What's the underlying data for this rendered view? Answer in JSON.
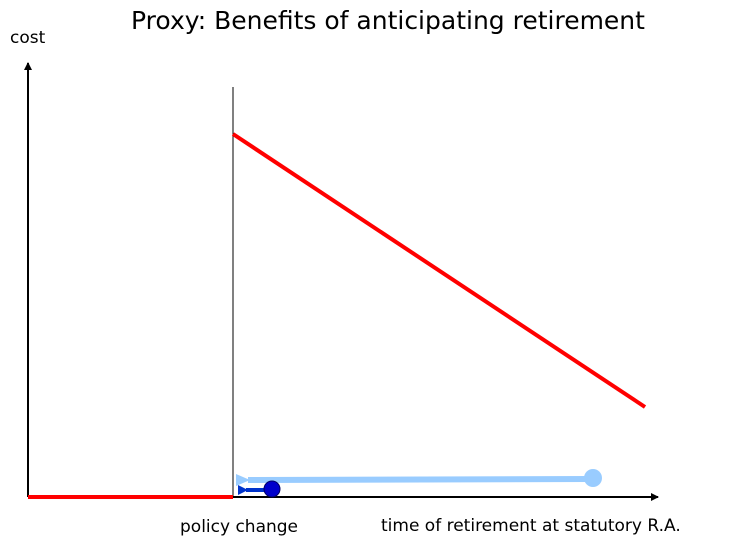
{
  "title": "Proxy: Benefits of anticipating retirement",
  "y_axis_label": "cost",
  "marker_label": "policy change",
  "x_axis_label": "time of retirement at statutory R.A."
}
